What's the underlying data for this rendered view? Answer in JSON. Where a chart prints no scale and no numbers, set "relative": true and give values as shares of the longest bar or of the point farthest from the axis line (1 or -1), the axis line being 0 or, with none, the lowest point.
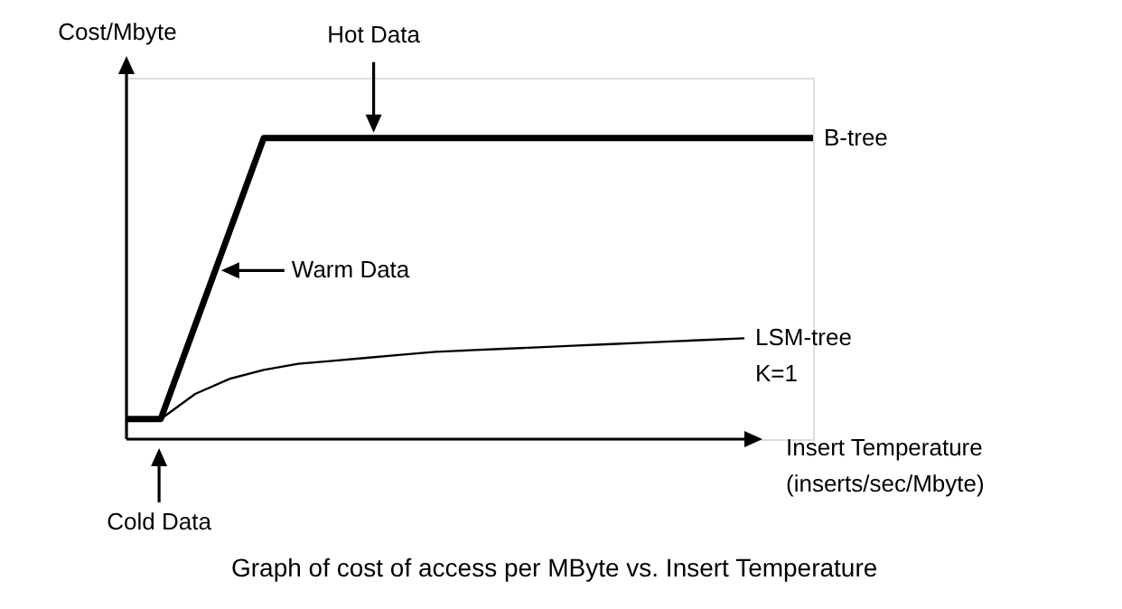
{
  "chart_data": {
    "type": "line",
    "relative": true,
    "line_style": "solid",
    "xlabel": "Insert Temperature\n(inserts/sec/Mbyte)",
    "ylabel": "Cost/Mbyte",
    "categories": [
      null,
      null,
      null,
      null,
      null,
      null,
      null,
      null,
      null,
      null,
      null,
      null,
      null,
      null,
      null,
      null,
      null,
      null,
      null,
      null,
      null
    ],
    "series": [
      {
        "name": "B-tree",
        "color": "#000000",
        "values": [
          0.067,
          0.067,
          0.378,
          0.689,
          1,
          1,
          1,
          1,
          1,
          1,
          1,
          1,
          1,
          1,
          1,
          1,
          1,
          1,
          1,
          1,
          1
        ]
      },
      {
        "name": "LSM-tree\nK=1",
        "color": "#000000",
        "values": [
          null,
          0.067,
          0.15,
          0.2,
          0.23,
          0.25,
          0.26,
          0.27,
          0.28,
          0.29,
          0.295,
          0.3,
          0.305,
          0.31,
          0.315,
          0.32,
          0.325,
          0.33,
          0.335,
          null,
          null
        ]
      }
    ],
    "annotations": [
      "Hot Data",
      "Warm Data",
      "Cold Data",
      "Graph of cost of access per MByte vs.  Insert Temperature"
    ]
  }
}
